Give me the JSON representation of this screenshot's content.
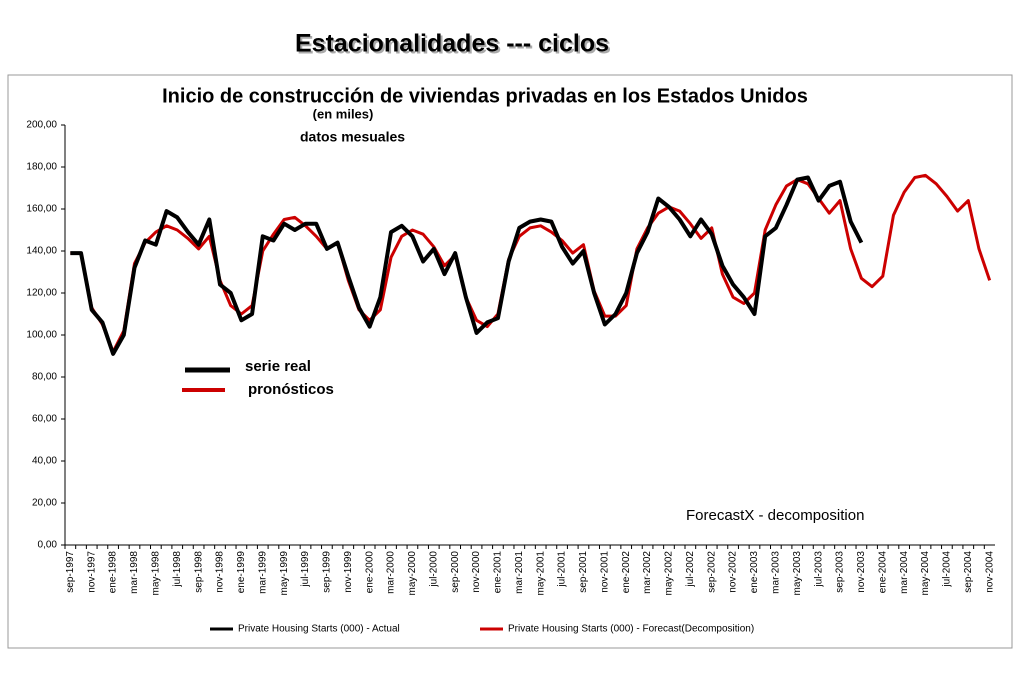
{
  "header": "Estacionalidades --- ciclos",
  "chart_data": {
    "type": "line",
    "title": "Inicio de construcción de viviendas privadas en los Estados Unidos",
    "subtitle": "(en miles)",
    "annotations": [
      "datos mesuales",
      "serie real",
      "pronósticos",
      "ForecastX - decomposition"
    ],
    "categories": [
      "sep-1997",
      null,
      "nov-1997",
      null,
      "ene-1998",
      null,
      "mar-1998",
      null,
      "may-1998",
      null,
      "jul-1998",
      null,
      "sep-1998",
      null,
      "nov-1998",
      null,
      "ene-1999",
      null,
      "mar-1999",
      null,
      "may-1999",
      null,
      "jul-1999",
      null,
      "sep-1999",
      null,
      "nov-1999",
      null,
      "ene-2000",
      null,
      "mar-2000",
      null,
      "may-2000",
      null,
      "jul-2000",
      null,
      "sep-2000",
      null,
      "nov-2000",
      null,
      "ene-2001",
      null,
      "mar-2001",
      null,
      "may-2001",
      null,
      "jul-2001",
      null,
      "sep-2001",
      null,
      "nov-2001",
      null,
      "ene-2002",
      null,
      "mar-2002",
      null,
      "may-2002",
      null,
      "jul-2002",
      null,
      "sep-2002",
      null,
      "nov-2002",
      null,
      "ene-2003",
      null,
      "mar-2003",
      null,
      "may-2003",
      null,
      "jul-2003",
      null,
      "sep-2003",
      null,
      "nov-2003",
      null,
      "ene-2004",
      null,
      "mar-2004",
      null,
      "may-2004",
      null,
      "jul-2004",
      null,
      "sep-2004",
      null,
      "nov-2004"
    ],
    "series": [
      {
        "name": "Private Housing Starts (000) - Actual",
        "color": "#000000",
        "values": [
          139,
          139,
          112,
          106,
          91,
          100,
          132,
          145,
          143,
          159,
          156,
          149,
          143,
          155,
          124,
          120,
          107,
          110,
          147,
          145,
          153,
          150,
          153,
          153,
          141,
          144,
          128,
          113,
          104,
          118,
          149,
          152,
          147,
          135,
          141,
          129,
          139,
          118,
          101,
          106,
          108,
          135,
          151,
          154,
          155,
          154,
          142,
          134,
          140,
          120,
          105,
          110,
          120,
          139,
          149,
          165,
          161,
          155,
          147,
          155,
          148,
          133,
          124,
          118,
          110,
          147,
          151,
          162,
          174,
          175,
          164,
          171,
          173,
          154,
          144,
          null,
          null,
          null,
          null,
          null,
          null,
          null,
          null,
          null,
          null,
          null,
          null
        ]
      },
      {
        "name": "Private Housing Starts (000) - Forecast(Decomposition)",
        "color": "#cc0000",
        "values": [
          139,
          139,
          113,
          105,
          92,
          102,
          134,
          144,
          149,
          152,
          150,
          146,
          141,
          147,
          126,
          114,
          110,
          114,
          140,
          148,
          155,
          156,
          152,
          147,
          141,
          144,
          126,
          112,
          107,
          112,
          137,
          147,
          150,
          148,
          142,
          133,
          138,
          118,
          107,
          104,
          110,
          136,
          147,
          151,
          152,
          149,
          145,
          139,
          143,
          121,
          109,
          109,
          114,
          141,
          151,
          158,
          161,
          159,
          153,
          146,
          151,
          129,
          118,
          115,
          120,
          150,
          162,
          171,
          174,
          172,
          165,
          158,
          164,
          141,
          127,
          123,
          128,
          157,
          168,
          175,
          176,
          172,
          166,
          159,
          164,
          141,
          126
        ]
      }
    ],
    "ylim": [
      0,
      200
    ],
    "yticks": [
      {
        "value": 0,
        "label": "0,00"
      },
      {
        "value": 20,
        "label": "20,00"
      },
      {
        "value": 40,
        "label": "40,00"
      },
      {
        "value": 60,
        "label": "60,00"
      },
      {
        "value": 80,
        "label": "80,00"
      },
      {
        "value": 100,
        "label": "100,00"
      },
      {
        "value": 120,
        "label": "120,00"
      },
      {
        "value": 140,
        "label": "140,00"
      },
      {
        "value": 160,
        "label": "160,00"
      },
      {
        "value": 180,
        "label": "180,00"
      },
      {
        "value": 200,
        "label": "200,00"
      }
    ],
    "grid": false,
    "legend": "bottom"
  }
}
